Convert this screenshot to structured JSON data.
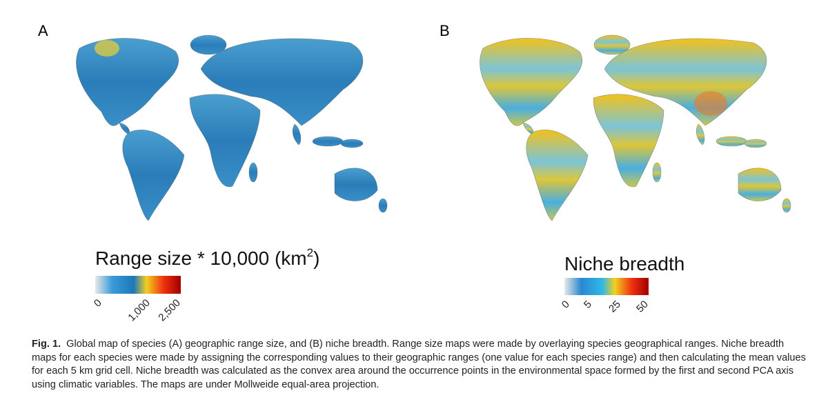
{
  "panels": [
    {
      "label": "A",
      "legend": {
        "title": "Range size * 10,000 (km",
        "title_sup": "2",
        "title_end": ")",
        "ticks": [
          "0",
          "1,000",
          "2,500"
        ]
      }
    },
    {
      "label": "B",
      "legend": {
        "title": "Niche breadth",
        "ticks": [
          "0",
          "5",
          "25",
          "50"
        ]
      }
    }
  ],
  "caption": {
    "label": "Fig. 1.",
    "text": "Global map of species (A) geographic range size, and (B) niche breadth. Range size maps were made by overlaying species geographical ranges. Niche breadth maps for each species were made by assigning the corresponding values to their geographic ranges (one value for each species range) and then calculating the mean values for each 5 km grid cell. Niche breadth was calculated as the convex area around the occurrence points in the environmental space formed by the first and second PCA axis using climatic variables. The maps are under Mollweide equal-area projection."
  }
}
